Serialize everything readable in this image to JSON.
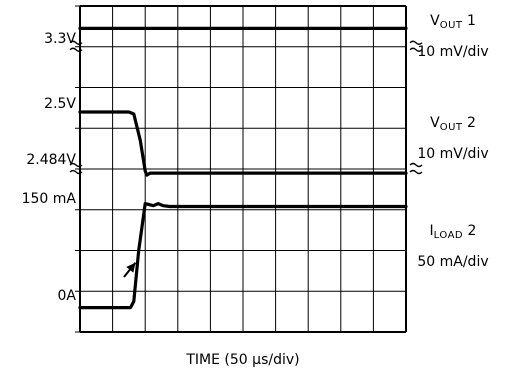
{
  "chart_data": {
    "type": "line",
    "xlabel": "TIME (50 µs/div)",
    "x_divisions": 10,
    "y_divisions": 8,
    "axis_labels": [
      {
        "text": "3.3V"
      },
      {
        "text": "2.5V"
      },
      {
        "text": "2.484V"
      },
      {
        "text": "150 mA"
      },
      {
        "text": "0A"
      }
    ],
    "channels": [
      {
        "main": "V",
        "sub": "OUT",
        "suffix": " 1",
        "scale": "10 mV/div"
      },
      {
        "main": "V",
        "sub": "OUT",
        "suffix": " 2",
        "scale": "10 mV/div"
      },
      {
        "main": "I",
        "sub": "LOAD",
        "suffix": " 2",
        "scale": "50 mA/div"
      }
    ],
    "series": [
      {
        "x_div": [
          0,
          10
        ],
        "y_div": [
          0.55,
          0.55
        ]
      },
      {
        "x_div": [
          0,
          1.5,
          1.65,
          1.85,
          2.0,
          2.05,
          2.15,
          2.4,
          10
        ],
        "y_div": [
          2.6,
          2.6,
          2.65,
          3.3,
          4.05,
          4.15,
          4.1,
          4.1,
          4.1
        ]
      },
      {
        "x_div": [
          0,
          1.55,
          1.65,
          1.8,
          2.0,
          2.25,
          2.4,
          2.55,
          2.75,
          10
        ],
        "y_div": [
          7.4,
          7.4,
          7.25,
          6.0,
          4.85,
          4.9,
          4.85,
          4.9,
          4.92,
          4.92
        ]
      }
    ],
    "breaks_at_div": [
      1,
      4
    ],
    "annotation": {
      "type": "arrow",
      "x_div": [
        1.35,
        1.7
      ],
      "y_div": [
        6.65,
        6.3
      ]
    }
  }
}
